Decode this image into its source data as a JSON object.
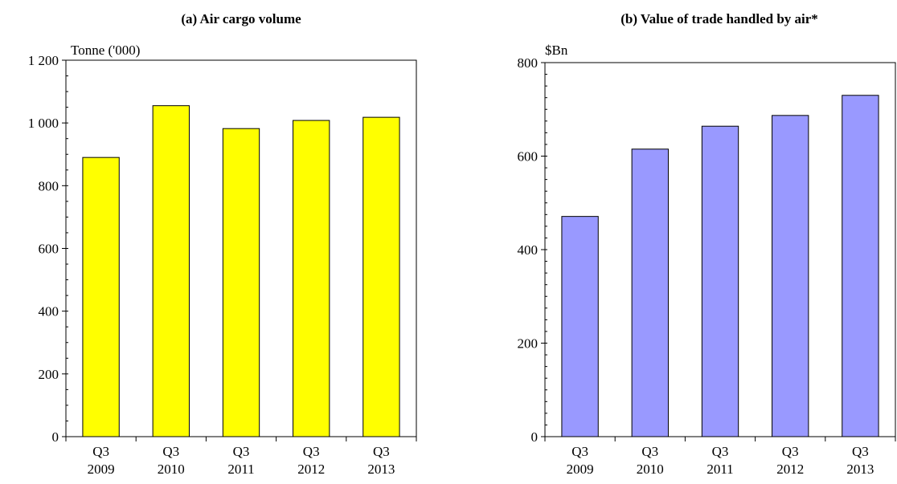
{
  "chart_data": [
    {
      "type": "bar",
      "title": "(a) Air cargo volume",
      "unit_label": "Tonne ('000)",
      "categories": [
        [
          "Q3",
          "2009"
        ],
        [
          "Q3",
          "2010"
        ],
        [
          "Q3",
          "2011"
        ],
        [
          "Q3",
          "2012"
        ],
        [
          "Q3",
          "2013"
        ]
      ],
      "values": [
        890,
        1055,
        982,
        1008,
        1018
      ],
      "ylim": [
        0,
        1200
      ],
      "yticks": [
        0,
        200,
        400,
        600,
        800,
        1000,
        1200
      ],
      "ytick_labels": [
        "0",
        "200",
        "400",
        "600",
        "800",
        "1 000",
        "1 200"
      ],
      "minor_step": 50,
      "bar_color": "#ffff00",
      "grid": false
    },
    {
      "type": "bar",
      "title": "(b) Value of trade handled by air*",
      "unit_label": "$Bn",
      "categories": [
        [
          "Q3",
          "2009"
        ],
        [
          "Q3",
          "2010"
        ],
        [
          "Q3",
          "2011"
        ],
        [
          "Q3",
          "2012"
        ],
        [
          "Q3",
          "2013"
        ]
      ],
      "values": [
        471,
        615,
        664,
        687,
        730
      ],
      "ylim": [
        0,
        800
      ],
      "yticks": [
        0,
        200,
        400,
        600,
        800
      ],
      "ytick_labels": [
        "0",
        "200",
        "400",
        "600",
        "800"
      ],
      "minor_step": 25,
      "bar_color": "#9999ff",
      "grid": false
    }
  ]
}
